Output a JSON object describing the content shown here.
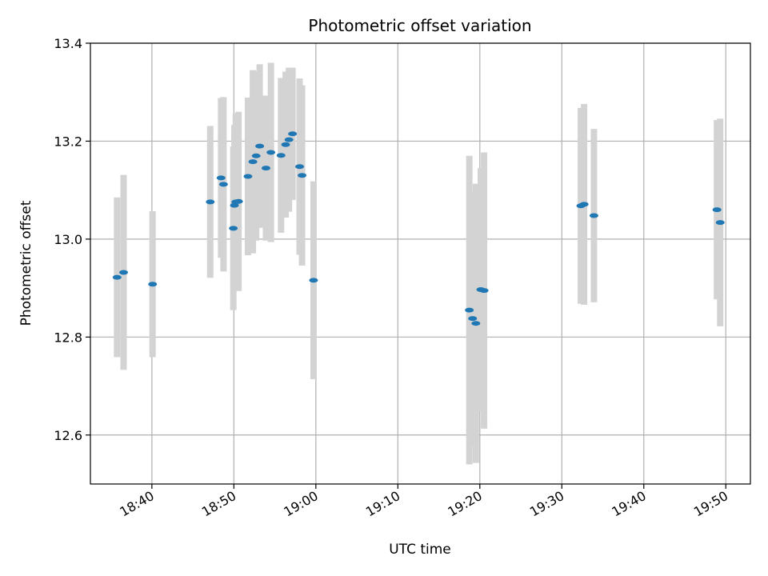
{
  "chart_data": {
    "type": "scatter",
    "title": "Photometric offset variation",
    "xlabel": "UTC time",
    "ylabel": "Photometric offset",
    "xlim": [
      "18:32:30",
      "19:53:00"
    ],
    "ylim": [
      12.5,
      13.4
    ],
    "x_ticks": [
      "18:40",
      "18:50",
      "19:00",
      "19:10",
      "19:20",
      "19:30",
      "19:40",
      "19:50"
    ],
    "y_ticks": [
      "12.6",
      "12.8",
      "13.0",
      "13.2",
      "13.4"
    ],
    "grid": true,
    "colors": {
      "points": "#1f77b4",
      "error_bars": "#d3d3d3",
      "grid": "#b0b0b0"
    },
    "series": [
      {
        "points": [
          {
            "t": "18:35:45",
            "y": 12.922,
            "err": 0.163
          },
          {
            "t": "18:36:33",
            "y": 12.932,
            "err": 0.199
          },
          {
            "t": "18:40:05",
            "y": 12.908,
            "err": 0.149
          },
          {
            "t": "18:47:07",
            "y": 13.076,
            "err": 0.155
          },
          {
            "t": "18:48:26",
            "y": 13.125,
            "err": 0.163
          },
          {
            "t": "18:48:44",
            "y": 13.112,
            "err": 0.178
          },
          {
            "t": "18:49:56",
            "y": 13.022,
            "err": 0.167
          },
          {
            "t": "18:50:04",
            "y": 13.069,
            "err": 0.164
          },
          {
            "t": "18:50:14",
            "y": 13.076,
            "err": 0.18
          },
          {
            "t": "18:50:34",
            "y": 13.077,
            "err": 0.183
          },
          {
            "t": "18:51:43",
            "y": 13.128,
            "err": 0.161
          },
          {
            "t": "18:52:19",
            "y": 13.158,
            "err": 0.187
          },
          {
            "t": "18:52:43",
            "y": 13.17,
            "err": 0.173
          },
          {
            "t": "18:53:09",
            "y": 13.19,
            "err": 0.167
          },
          {
            "t": "18:53:55",
            "y": 13.145,
            "err": 0.148
          },
          {
            "t": "18:54:31",
            "y": 13.177,
            "err": 0.183
          },
          {
            "t": "18:55:45",
            "y": 13.171,
            "err": 0.158
          },
          {
            "t": "18:56:19",
            "y": 13.193,
            "err": 0.149
          },
          {
            "t": "18:56:43",
            "y": 13.203,
            "err": 0.147
          },
          {
            "t": "18:57:09",
            "y": 13.215,
            "err": 0.135
          },
          {
            "t": "18:58:01",
            "y": 13.148,
            "err": 0.18
          },
          {
            "t": "18:58:19",
            "y": 13.13,
            "err": 0.184
          },
          {
            "t": "18:59:43",
            "y": 12.916,
            "err": 0.202
          },
          {
            "t": "19:18:43",
            "y": 12.855,
            "err": 0.315
          },
          {
            "t": "19:19:07",
            "y": 12.838,
            "err": 0.26
          },
          {
            "t": "19:19:31",
            "y": 12.828,
            "err": 0.285
          },
          {
            "t": "19:20:07",
            "y": 12.897,
            "err": 0.248
          },
          {
            "t": "19:20:31",
            "y": 12.895,
            "err": 0.282
          },
          {
            "t": "19:32:19",
            "y": 13.068,
            "err": 0.2
          },
          {
            "t": "19:32:43",
            "y": 13.071,
            "err": 0.205
          },
          {
            "t": "19:33:55",
            "y": 13.048,
            "err": 0.177
          },
          {
            "t": "19:48:55",
            "y": 13.06,
            "err": 0.183
          },
          {
            "t": "19:49:19",
            "y": 13.034,
            "err": 0.212
          }
        ]
      }
    ]
  }
}
